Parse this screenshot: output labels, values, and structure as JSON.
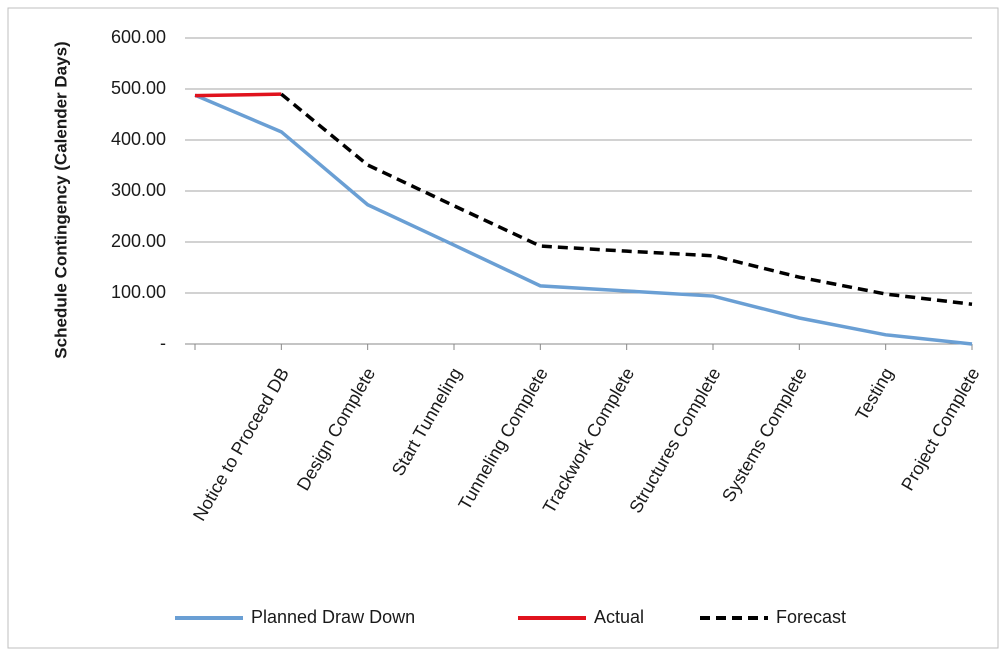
{
  "chart_data": {
    "type": "line",
    "y_label": "Schedule Contingency (Calender Days)",
    "categories": [
      null,
      "Notice to Proceed DB",
      "Design Complete",
      "Start Tunneling",
      "Tunneling Complete",
      "Trackwork Complete",
      "Structures Complete",
      "Systems Complete",
      "Testing",
      "Project Complete"
    ],
    "series": [
      {
        "name": "Planned Draw Down",
        "color": "#6a9fd4",
        "dash": false,
        "values": [
          488,
          416,
          273,
          194,
          114,
          104,
          94,
          51,
          18,
          0
        ]
      },
      {
        "name": "Actual",
        "color": "#e0121d",
        "dash": false,
        "values": [
          487,
          490,
          null,
          null,
          null,
          null,
          null,
          null,
          null,
          null
        ]
      },
      {
        "name": "Forecast",
        "color": "#000000",
        "dash": true,
        "values": [
          null,
          490,
          351,
          271,
          192,
          182,
          173,
          131,
          98,
          78
        ]
      }
    ],
    "ylim": [
      0,
      600
    ],
    "yticks": [
      {
        "value": 0,
        "label": "-"
      },
      {
        "value": 100,
        "label": "100.00"
      },
      {
        "value": 200,
        "label": "200.00"
      },
      {
        "value": 300,
        "label": "300.00"
      },
      {
        "value": 400,
        "label": "400.00"
      },
      {
        "value": 500,
        "label": "500.00"
      },
      {
        "value": 600,
        "label": "600.00"
      }
    ],
    "grid": true,
    "legend": "bottom"
  }
}
